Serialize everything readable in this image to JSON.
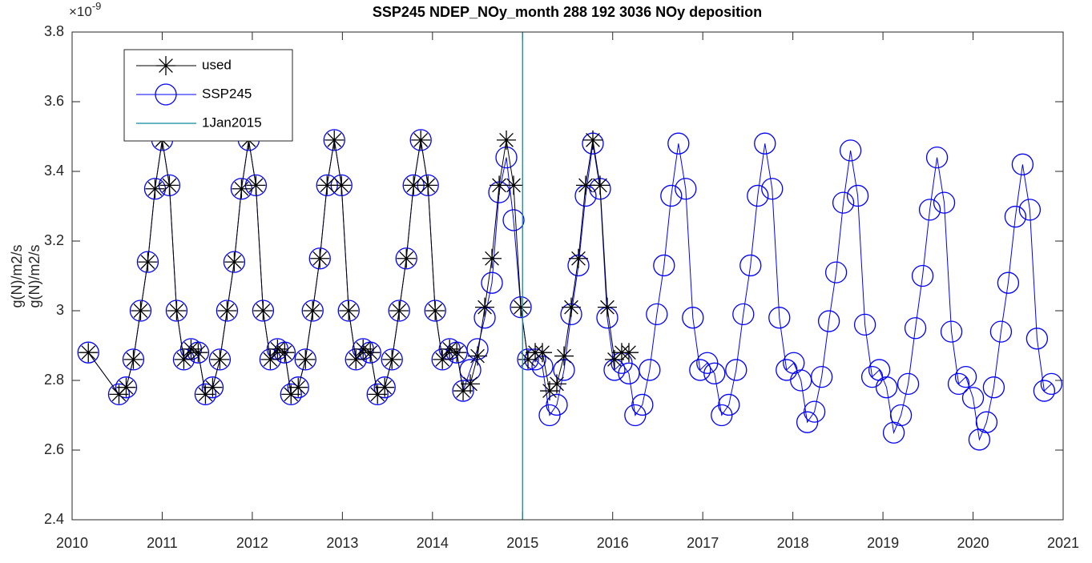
{
  "chart_data": {
    "type": "line",
    "title": "SSP245 NDEP_NOy_month  288 192 3036   NOy deposition",
    "ylabel": [
      "g(N)/m2/s",
      "g(N)/m2/s"
    ],
    "y_multiplier": {
      "base": "×10",
      "exponent": "-9"
    },
    "xlim": [
      2010,
      2021
    ],
    "xticks": [
      2010,
      2011,
      2012,
      2013,
      2014,
      2015,
      2016,
      2017,
      2018,
      2019,
      2020,
      2021
    ],
    "ylim": [
      2.4,
      3.8
    ],
    "yticks": [
      2.4,
      2.6,
      2.8,
      3,
      3.2,
      3.4,
      3.6,
      3.8
    ],
    "legend": "upper-left",
    "series": [
      {
        "name": "used",
        "color": "#000000",
        "marker": "asterisk",
        "x": [
          2010.18,
          2010.52,
          2010.6,
          2010.68,
          2010.76,
          2010.84,
          2010.92,
          2011.0,
          2011.08,
          2011.16,
          2011.24,
          2011.32,
          2011.4,
          2011.48,
          2011.56,
          2011.64,
          2011.72,
          2011.8,
          2011.88,
          2011.96,
          2012.04,
          2012.12,
          2012.2,
          2012.28,
          2012.36,
          2012.43,
          2012.51,
          2012.59,
          2012.67,
          2012.75,
          2012.83,
          2012.91,
          2012.99,
          2013.07,
          2013.15,
          2013.23,
          2013.31,
          2013.39,
          2013.47,
          2013.55,
          2013.63,
          2013.71,
          2013.79,
          2013.87,
          2013.95,
          2014.03,
          2014.11,
          2014.19,
          2014.27,
          2014.34,
          2014.42,
          2014.5,
          2014.58,
          2014.66,
          2014.74,
          2014.82,
          2014.9,
          2014.98,
          2015.06,
          2015.14,
          2015.22,
          2015.3,
          2015.38,
          2015.46,
          2015.54,
          2015.62,
          2015.7,
          2015.78,
          2015.86,
          2015.94,
          2016.02,
          2016.1,
          2016.18
        ],
        "values": [
          2.88,
          2.76,
          2.78,
          2.86,
          3.0,
          3.14,
          3.35,
          3.49,
          3.36,
          3.0,
          2.86,
          2.89,
          2.88,
          2.76,
          2.78,
          2.86,
          3.0,
          3.14,
          3.35,
          3.49,
          3.36,
          3.0,
          2.86,
          2.89,
          2.88,
          2.76,
          2.78,
          2.86,
          3.0,
          3.15,
          3.36,
          3.49,
          3.36,
          3.0,
          2.86,
          2.89,
          2.88,
          2.76,
          2.78,
          2.86,
          3.0,
          3.15,
          3.36,
          3.49,
          3.36,
          3.0,
          2.86,
          2.89,
          2.88,
          2.77,
          2.79,
          2.87,
          3.01,
          3.15,
          3.36,
          3.49,
          3.36,
          3.01,
          2.86,
          2.88,
          2.88,
          2.77,
          2.79,
          2.87,
          3.01,
          3.15,
          3.36,
          3.49,
          3.36,
          3.01,
          2.86,
          2.88,
          2.88
        ]
      },
      {
        "name": "SSP245",
        "color": "#0000ff",
        "marker": "circle",
        "x": [
          2010.18,
          2010.52,
          2010.6,
          2010.68,
          2010.76,
          2010.84,
          2010.92,
          2011.0,
          2011.08,
          2011.16,
          2011.24,
          2011.32,
          2011.4,
          2011.48,
          2011.56,
          2011.64,
          2011.72,
          2011.8,
          2011.88,
          2011.96,
          2012.04,
          2012.12,
          2012.2,
          2012.28,
          2012.36,
          2012.43,
          2012.51,
          2012.59,
          2012.67,
          2012.75,
          2012.83,
          2012.91,
          2012.99,
          2013.07,
          2013.15,
          2013.23,
          2013.31,
          2013.39,
          2013.47,
          2013.55,
          2013.63,
          2013.71,
          2013.79,
          2013.87,
          2013.95,
          2014.03,
          2014.11,
          2014.19,
          2014.27,
          2014.34,
          2014.42,
          2014.5,
          2014.58,
          2014.66,
          2014.74,
          2014.82,
          2014.9,
          2014.98,
          2015.06,
          2015.14,
          2015.22,
          2015.3,
          2015.38,
          2015.46,
          2015.54,
          2015.62,
          2015.7,
          2015.78,
          2015.86,
          2015.94,
          2016.02,
          2016.1,
          2016.18,
          2016.25,
          2016.33,
          2016.41,
          2016.49,
          2016.57,
          2016.65,
          2016.73,
          2016.81,
          2016.89,
          2016.97,
          2017.05,
          2017.13,
          2017.21,
          2017.29,
          2017.37,
          2017.45,
          2017.53,
          2017.61,
          2017.69,
          2017.77,
          2017.85,
          2017.93,
          2018.01,
          2018.09,
          2018.16,
          2018.24,
          2018.32,
          2018.4,
          2018.48,
          2018.56,
          2018.64,
          2018.72,
          2018.8,
          2018.88,
          2018.96,
          2019.04,
          2019.12,
          2019.2,
          2019.28,
          2019.36,
          2019.44,
          2019.52,
          2019.6,
          2019.68,
          2019.76,
          2019.84,
          2019.92,
          2020.0,
          2020.07,
          2020.15,
          2020.23,
          2020.31,
          2020.39,
          2020.47,
          2020.55,
          2020.63,
          2020.71,
          2020.79,
          2020.87
        ],
        "values": [
          2.88,
          2.76,
          2.78,
          2.86,
          3.0,
          3.14,
          3.35,
          3.49,
          3.36,
          3.0,
          2.86,
          2.89,
          2.88,
          2.76,
          2.78,
          2.86,
          3.0,
          3.14,
          3.35,
          3.49,
          3.36,
          3.0,
          2.86,
          2.89,
          2.88,
          2.76,
          2.78,
          2.86,
          3.0,
          3.15,
          3.36,
          3.49,
          3.36,
          3.0,
          2.86,
          2.89,
          2.88,
          2.76,
          2.78,
          2.86,
          3.0,
          3.15,
          3.36,
          3.49,
          3.36,
          3.0,
          2.86,
          2.89,
          2.88,
          2.77,
          2.83,
          2.89,
          2.98,
          3.08,
          3.34,
          3.44,
          3.26,
          3.01,
          2.86,
          2.86,
          2.84,
          2.7,
          2.73,
          2.83,
          2.99,
          3.13,
          3.33,
          3.48,
          3.35,
          2.98,
          2.83,
          2.85,
          2.82,
          2.7,
          2.73,
          2.83,
          2.99,
          3.13,
          3.33,
          3.48,
          3.35,
          2.98,
          2.83,
          2.85,
          2.82,
          2.7,
          2.73,
          2.83,
          2.99,
          3.13,
          3.33,
          3.48,
          3.35,
          2.98,
          2.83,
          2.85,
          2.8,
          2.68,
          2.71,
          2.81,
          2.97,
          3.11,
          3.31,
          3.46,
          3.33,
          2.96,
          2.81,
          2.83,
          2.78,
          2.65,
          2.7,
          2.79,
          2.95,
          3.1,
          3.29,
          3.44,
          3.31,
          2.94,
          2.79,
          2.81,
          2.75,
          2.63,
          2.68,
          2.78,
          2.94,
          3.08,
          3.27,
          3.42,
          3.29,
          2.92,
          2.77,
          2.79
        ]
      }
    ],
    "vline": {
      "name": "1Jan2015",
      "x": 2015,
      "color": "#0f8aa0"
    }
  }
}
